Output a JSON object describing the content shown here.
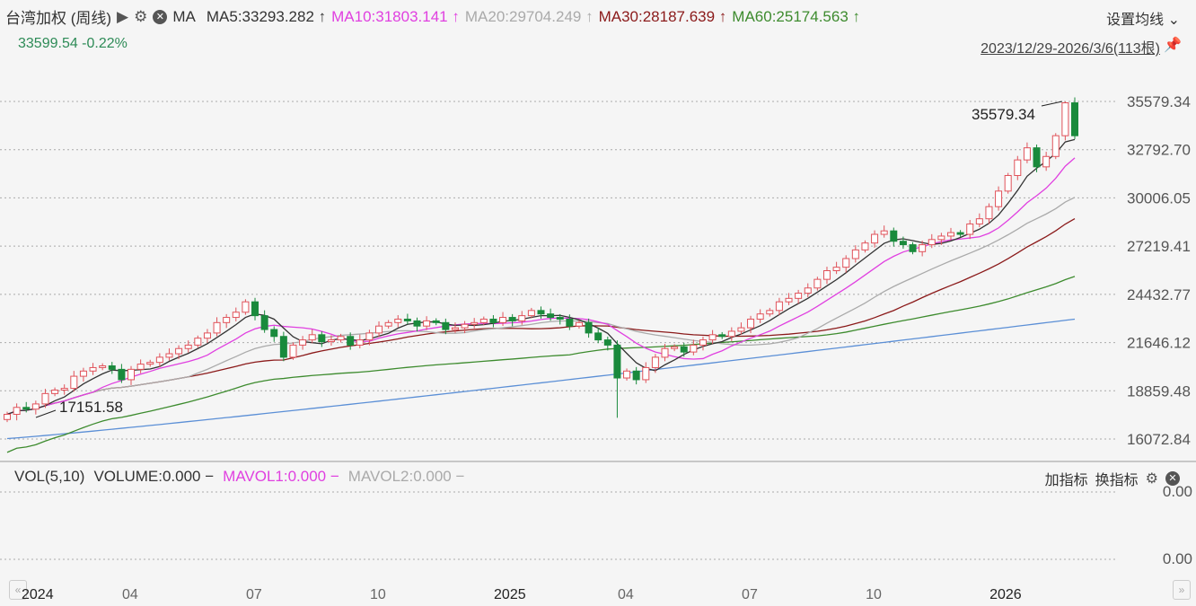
{
  "header": {
    "title": "台湾加权 (周线)",
    "play_icon": "▶",
    "ma_label": "MA",
    "ma5": "MA5:33293.282 ↑",
    "ma10": "MA10:31803.141 ↑",
    "ma20": "MA20:29704.249 ↑",
    "ma30": "MA30:28187.639 ↑",
    "ma60": "MA60:25174.563 ↑",
    "settings": "设置均线 ⌄",
    "price_change": "33599.54 -0.22%",
    "range": "2023/12/29-2026/3/6(113根)"
  },
  "volume_panel": {
    "label": "VOL(5,10)",
    "volume": "VOLUME:0.000 −",
    "mavol1": "MAVOL1:0.000 −",
    "mavol2": "MAVOL2:0.000 −",
    "add_indicator": "加指标",
    "switch_indicator": "换指标",
    "axis_top": "0.00",
    "axis_bottom": "0.00"
  },
  "colors": {
    "up": "#e0525a",
    "down": "#1a8a3c",
    "ma5": "#333333",
    "ma10": "#e040e0",
    "ma20": "#aaaaaa",
    "ma30": "#8b1a1a",
    "ma60": "#3d8b2e",
    "ma_long": "#5b8fd6"
  },
  "chart_data": {
    "type": "candlestick",
    "ylim": [
      16072.84,
      35579.34
    ],
    "y_ticks": [
      "35579.34",
      "32792.70",
      "30006.05",
      "27219.41",
      "24432.77",
      "21646.12",
      "18859.48",
      "16072.84"
    ],
    "x_ticks": [
      "2024",
      "04",
      "07",
      "10",
      "2025",
      "04",
      "07",
      "10",
      "2026"
    ],
    "x_tick_index": [
      0,
      13,
      26,
      39,
      52,
      65,
      78,
      91,
      104
    ],
    "max_label": "35579.34",
    "min_label": "17151.58",
    "min_value": 17151.58,
    "max_value": 35579.34,
    "ma_long_endpoints": [
      16100,
      23000
    ],
    "closes": [
      17500,
      17900,
      17800,
      18100,
      18700,
      18900,
      19000,
      19700,
      20000,
      20200,
      20300,
      20100,
      19500,
      20100,
      20400,
      20500,
      20800,
      21000,
      21300,
      21500,
      21900,
      22200,
      22800,
      23100,
      23400,
      24000,
      23200,
      22400,
      22000,
      20800,
      21500,
      21800,
      22100,
      21700,
      21800,
      22000,
      21500,
      21800,
      22200,
      22600,
      22800,
      23000,
      22900,
      22600,
      22900,
      22800,
      22400,
      22500,
      22700,
      22800,
      23000,
      22800,
      23100,
      22900,
      23200,
      23500,
      23300,
      23100,
      23000,
      22600,
      22800,
      22200,
      21800,
      21500,
      19600,
      20000,
      19500,
      20200,
      20800,
      21300,
      21400,
      21100,
      21500,
      21800,
      22100,
      22000,
      22300,
      22500,
      23000,
      23300,
      23500,
      24000,
      24200,
      24500,
      24800,
      25300,
      25800,
      26000,
      26500,
      27000,
      27400,
      27900,
      28100,
      27500,
      27300,
      26900,
      27300,
      27600,
      27800,
      28000,
      27900,
      28500,
      28800,
      29500,
      30400,
      31300,
      32200,
      32900,
      31800,
      32400,
      33600,
      35500,
      33599.54
    ]
  }
}
